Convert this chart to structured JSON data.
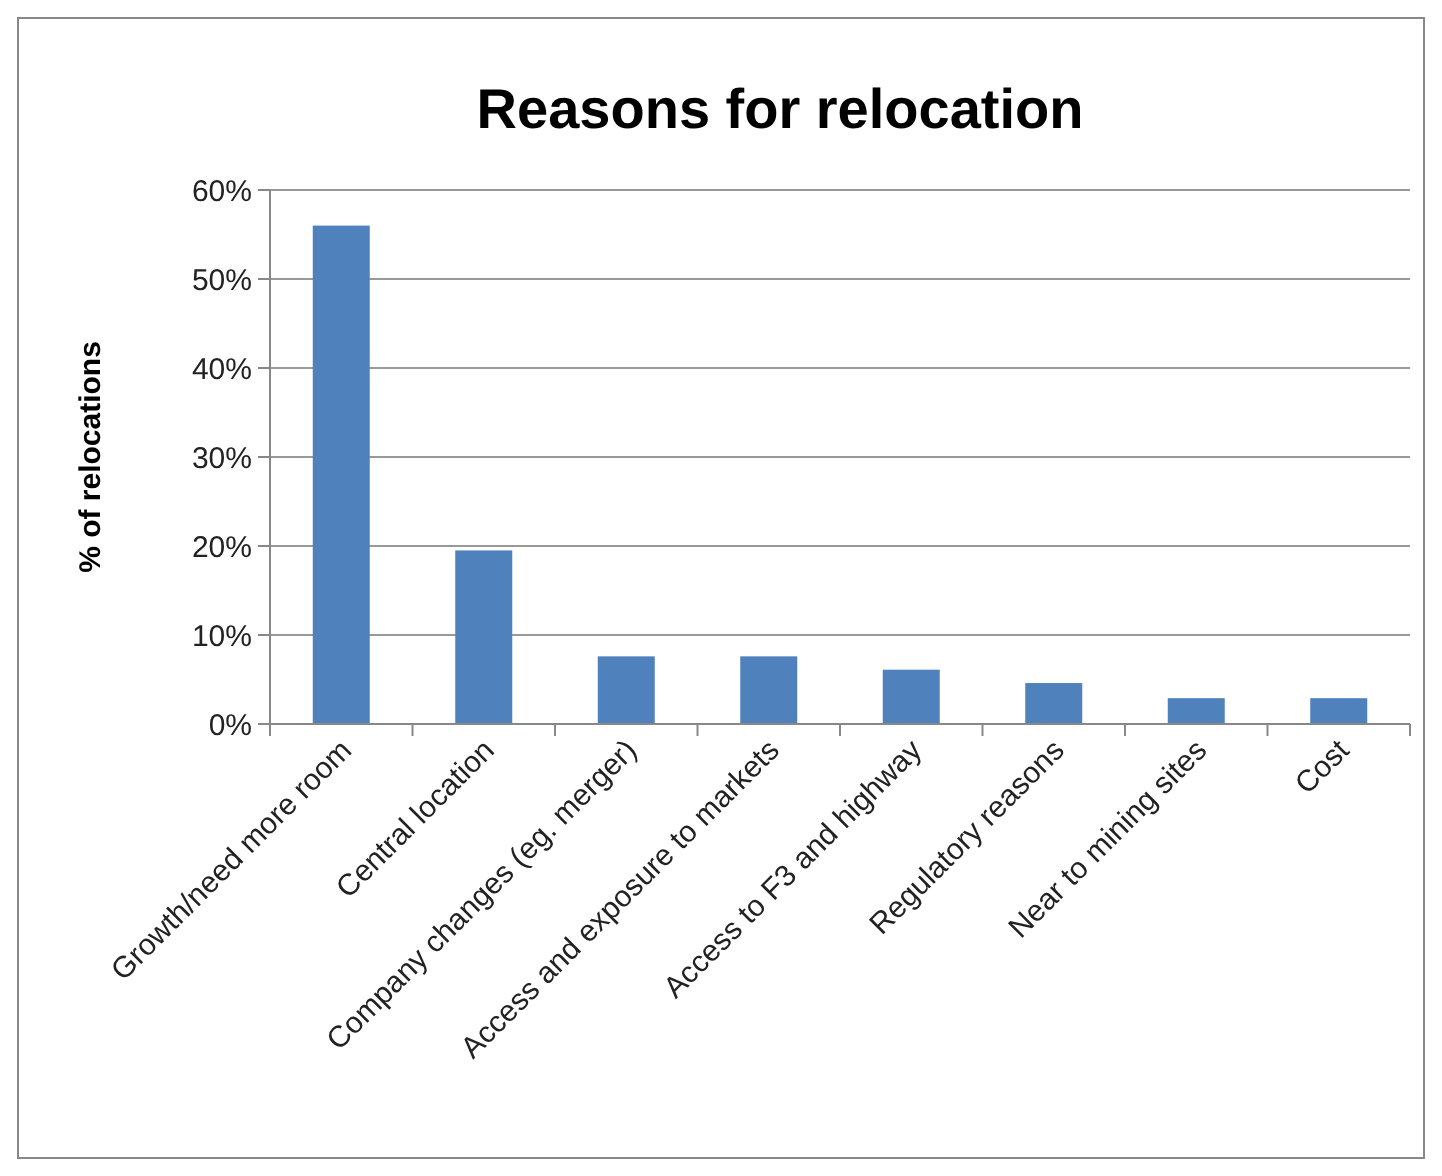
{
  "chart_data": {
    "type": "bar",
    "title": "Reasons for relocation",
    "ylabel": "% of relocations",
    "categories": [
      "Growth/need more room",
      "Central location",
      "Company changes (eg. merger)",
      "Access and exposure to markets",
      "Access to F3 and highway",
      "Regulatory reasons",
      "Near to mining sites",
      "Cost"
    ],
    "values": [
      56,
      19.5,
      7.6,
      7.6,
      6.1,
      4.6,
      2.9,
      2.9
    ],
    "color": "#4f81bd",
    "ylim": [
      0,
      60
    ],
    "yticks": [
      {
        "value": 0,
        "label": "0%"
      },
      {
        "value": 10,
        "label": "10%"
      },
      {
        "value": 20,
        "label": "20%"
      },
      {
        "value": 30,
        "label": "30%"
      },
      {
        "value": 40,
        "label": "40%"
      },
      {
        "value": 50,
        "label": "50%"
      },
      {
        "value": 60,
        "label": "60%"
      }
    ],
    "grid": "y"
  }
}
